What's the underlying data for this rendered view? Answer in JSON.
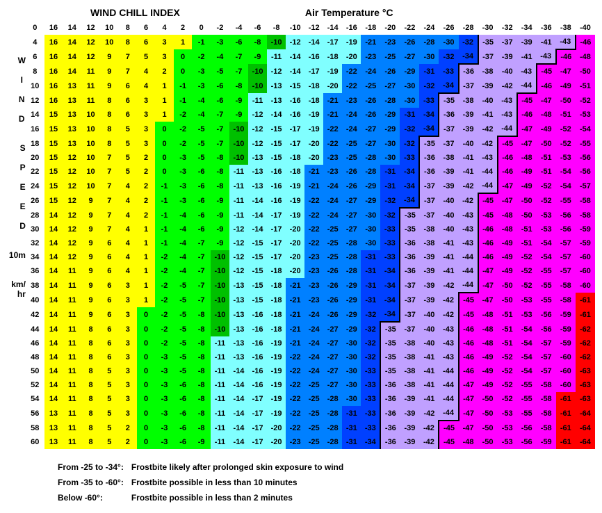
{
  "title": "WIND CHILL INDEX",
  "subtitle": "Air Temperature °C",
  "side_label_word1": "WIND",
  "side_label_word2": "SPEED",
  "side_label_10m": "10m",
  "side_label_unit1": "km/",
  "side_label_unit2": "hr",
  "temps": [
    16,
    14,
    12,
    10,
    8,
    6,
    4,
    2,
    0,
    -2,
    -4,
    -6,
    -8,
    -10,
    -12,
    -14,
    -16,
    -18,
    -20,
    -22,
    -24,
    -26,
    -28,
    -30,
    -32,
    -34,
    -36,
    -38,
    -40
  ],
  "winds": [
    4,
    6,
    8,
    10,
    12,
    14,
    16,
    18,
    20,
    22,
    24,
    26,
    28,
    30,
    32,
    34,
    36,
    38,
    40,
    42,
    44,
    46,
    48,
    50,
    52,
    54,
    56,
    58,
    60
  ],
  "zero_header": "0",
  "values": [
    [
      16,
      14,
      12,
      10,
      8,
      6,
      3,
      1,
      -1,
      -3,
      -6,
      -8,
      -10,
      -12,
      -14,
      -17,
      -19,
      -21,
      -23,
      -26,
      -28,
      -30,
      -32,
      -35,
      -37,
      -39,
      -41,
      -43,
      -46
    ],
    [
      16,
      14,
      12,
      9,
      7,
      5,
      3,
      0,
      -2,
      -4,
      -7,
      -9,
      -11,
      -14,
      -16,
      -18,
      -20,
      -23,
      -25,
      -27,
      -30,
      -32,
      -34,
      -37,
      -39,
      -41,
      -43,
      -46,
      -48
    ],
    [
      16,
      14,
      11,
      9,
      7,
      4,
      2,
      0,
      -3,
      -5,
      -7,
      -10,
      -12,
      -14,
      -17,
      -19,
      -22,
      -24,
      -26,
      -29,
      -31,
      -33,
      -36,
      -38,
      -40,
      -43,
      -45,
      -47,
      -50
    ],
    [
      16,
      13,
      11,
      9,
      6,
      4,
      1,
      -1,
      -3,
      -6,
      -8,
      -10,
      -13,
      -15,
      -18,
      -20,
      -22,
      -25,
      -27,
      -30,
      -32,
      -34,
      -37,
      -39,
      -42,
      -44,
      -46,
      -49,
      -51
    ],
    [
      16,
      13,
      11,
      8,
      6,
      3,
      1,
      -1,
      -4,
      -6,
      -9,
      -11,
      -13,
      -16,
      -18,
      -21,
      -23,
      -26,
      -28,
      -30,
      -33,
      -35,
      -38,
      -40,
      -43,
      -45,
      -47,
      -50,
      -52
    ],
    [
      15,
      13,
      10,
      8,
      6,
      3,
      1,
      -2,
      -4,
      -7,
      -9,
      -12,
      -14,
      -16,
      -19,
      -21,
      -24,
      -26,
      -29,
      -31,
      -34,
      -36,
      -39,
      -41,
      -43,
      -46,
      -48,
      -51,
      -53
    ],
    [
      15,
      13,
      10,
      8,
      5,
      3,
      0,
      -2,
      -5,
      -7,
      -10,
      -12,
      -15,
      -17,
      -19,
      -22,
      -24,
      -27,
      -29,
      -32,
      -34,
      -37,
      -39,
      -42,
      -44,
      -47,
      -49,
      -52,
      -54
    ],
    [
      15,
      13,
      10,
      8,
      5,
      3,
      0,
      -2,
      -5,
      -7,
      -10,
      -12,
      -15,
      -17,
      -20,
      -22,
      -25,
      -27,
      -30,
      -32,
      -35,
      -37,
      -40,
      -42,
      -45,
      -47,
      -50,
      -52,
      -55
    ],
    [
      15,
      12,
      10,
      7,
      5,
      2,
      0,
      -3,
      -5,
      -8,
      -10,
      -13,
      -15,
      -18,
      -20,
      -23,
      -25,
      -28,
      -30,
      -33,
      -36,
      -38,
      -41,
      -43,
      -46,
      -48,
      -51,
      -53,
      -56
    ],
    [
      15,
      12,
      10,
      7,
      5,
      2,
      0,
      -3,
      -6,
      -8,
      -11,
      -13,
      -16,
      -18,
      -21,
      -23,
      -26,
      -28,
      -31,
      -34,
      -36,
      -39,
      -41,
      -44,
      -46,
      -49,
      -51,
      -54,
      -56
    ],
    [
      15,
      12,
      10,
      7,
      4,
      2,
      -1,
      -3,
      -6,
      -8,
      -11,
      -13,
      -16,
      -19,
      -21,
      -24,
      -26,
      -29,
      -31,
      -34,
      -37,
      -39,
      -42,
      -44,
      -47,
      -49,
      -52,
      -54,
      -57
    ],
    [
      15,
      12,
      9,
      7,
      4,
      2,
      -1,
      -3,
      -6,
      -9,
      -11,
      -14,
      -16,
      -19,
      -22,
      -24,
      -27,
      -29,
      -32,
      -34,
      -37,
      -40,
      -42,
      -45,
      -47,
      -50,
      -52,
      -55,
      -58
    ],
    [
      14,
      12,
      9,
      7,
      4,
      2,
      -1,
      -4,
      -6,
      -9,
      -11,
      -14,
      -17,
      -19,
      -22,
      -24,
      -27,
      -30,
      -32,
      -35,
      -37,
      -40,
      -43,
      -45,
      -48,
      -50,
      -53,
      -56,
      -58
    ],
    [
      14,
      12,
      9,
      7,
      4,
      1,
      -1,
      -4,
      -6,
      -9,
      -12,
      -14,
      -17,
      -20,
      -22,
      -25,
      -27,
      -30,
      -33,
      -35,
      -38,
      -40,
      -43,
      -46,
      -48,
      -51,
      -53,
      -56,
      -59
    ],
    [
      14,
      12,
      9,
      6,
      4,
      1,
      -1,
      -4,
      -7,
      -9,
      -12,
      -15,
      -17,
      -20,
      -22,
      -25,
      -28,
      -30,
      -33,
      -36,
      -38,
      -41,
      -43,
      -46,
      -49,
      -51,
      -54,
      -57,
      -59
    ],
    [
      14,
      12,
      9,
      6,
      4,
      1,
      -2,
      -4,
      -7,
      -10,
      -12,
      -15,
      -17,
      -20,
      -23,
      -25,
      -28,
      -31,
      -33,
      -36,
      -39,
      -41,
      -44,
      -46,
      -49,
      -52,
      -54,
      -57,
      -60
    ],
    [
      14,
      11,
      9,
      6,
      4,
      1,
      -2,
      -4,
      -7,
      -10,
      -12,
      -15,
      -18,
      -20,
      -23,
      -26,
      -28,
      -31,
      -34,
      -36,
      -39,
      -41,
      -44,
      -47,
      -49,
      -52,
      -55,
      -57,
      -60
    ],
    [
      14,
      11,
      9,
      6,
      3,
      1,
      -2,
      -5,
      -7,
      -10,
      -13,
      -15,
      -18,
      -21,
      -23,
      -26,
      -29,
      -31,
      -34,
      -37,
      -39,
      -42,
      -44,
      -47,
      -50,
      -52,
      -55,
      -58,
      -60
    ],
    [
      14,
      11,
      9,
      6,
      3,
      1,
      -2,
      -5,
      -7,
      -10,
      -13,
      -15,
      -18,
      -21,
      -23,
      -26,
      -29,
      -31,
      -34,
      -37,
      -39,
      -42,
      -45,
      -47,
      -50,
      -53,
      -55,
      -58,
      -61
    ],
    [
      14,
      11,
      9,
      6,
      3,
      0,
      -2,
      -5,
      -8,
      -10,
      -13,
      -16,
      -18,
      -21,
      -24,
      -26,
      -29,
      -32,
      -34,
      -37,
      -40,
      -42,
      -45,
      -48,
      -51,
      -53,
      -56,
      -59,
      -61
    ],
    [
      14,
      11,
      8,
      6,
      3,
      0,
      -2,
      -5,
      -8,
      -10,
      -13,
      -16,
      -18,
      -21,
      -24,
      -27,
      -29,
      -32,
      -35,
      -37,
      -40,
      -43,
      -46,
      -48,
      -51,
      -54,
      -56,
      -59,
      -62
    ],
    [
      14,
      11,
      8,
      6,
      3,
      0,
      -2,
      -5,
      -8,
      -11,
      -13,
      -16,
      -19,
      -21,
      -24,
      -27,
      -30,
      -32,
      -35,
      -38,
      -40,
      -43,
      -46,
      -48,
      -51,
      -54,
      -57,
      -59,
      -62
    ],
    [
      14,
      11,
      8,
      6,
      3,
      0,
      -3,
      -5,
      -8,
      -11,
      -13,
      -16,
      -19,
      -22,
      -24,
      -27,
      -30,
      -32,
      -35,
      -38,
      -41,
      -43,
      -46,
      -49,
      -52,
      -54,
      -57,
      -60,
      -62
    ],
    [
      14,
      11,
      8,
      5,
      3,
      0,
      -3,
      -5,
      -8,
      -11,
      -14,
      -16,
      -19,
      -22,
      -24,
      -27,
      -30,
      -33,
      -35,
      -38,
      -41,
      -44,
      -46,
      -49,
      -52,
      -54,
      -57,
      -60,
      -63
    ],
    [
      14,
      11,
      8,
      5,
      3,
      0,
      -3,
      -6,
      -8,
      -11,
      -14,
      -16,
      -19,
      -22,
      -25,
      -27,
      -30,
      -33,
      -36,
      -38,
      -41,
      -44,
      -47,
      -49,
      -52,
      -55,
      -58,
      -60,
      -63
    ],
    [
      14,
      11,
      8,
      5,
      3,
      0,
      -3,
      -6,
      -8,
      -11,
      -14,
      -17,
      -19,
      -22,
      -25,
      -28,
      -30,
      -33,
      -36,
      -39,
      -41,
      -44,
      -47,
      -50,
      -52,
      -55,
      -58,
      -61,
      -63
    ],
    [
      13,
      11,
      8,
      5,
      3,
      0,
      -3,
      -6,
      -8,
      -11,
      -14,
      -17,
      -19,
      -22,
      -25,
      -28,
      -31,
      -33,
      -36,
      -39,
      -42,
      -44,
      -47,
      -50,
      -53,
      -55,
      -58,
      -61,
      -64
    ],
    [
      13,
      11,
      8,
      5,
      2,
      0,
      -3,
      -6,
      -8,
      -11,
      -14,
      -17,
      -20,
      -22,
      -25,
      -28,
      -31,
      -33,
      -36,
      -39,
      -42,
      -45,
      -47,
      -50,
      -53,
      -56,
      -58,
      -61,
      -64
    ],
    [
      13,
      11,
      8,
      5,
      2,
      0,
      -3,
      -6,
      -9,
      -11,
      -14,
      -17,
      -20,
      -23,
      -25,
      -28,
      -31,
      -34,
      -36,
      -39,
      -42,
      -45,
      -48,
      -50,
      -53,
      -56,
      -59,
      -61,
      -64
    ]
  ],
  "colors": {
    "yellow": "#ffff00",
    "green1": "#00ff00",
    "green2": "#00c000",
    "cyan": "#80ffff",
    "blue1": "#0080ff",
    "blue2": "#0040ff",
    "violet": "#c0a0ff",
    "magenta": "#ff00ff",
    "red": "#ff0000",
    "white": "#ffffff",
    "border": "#000000"
  },
  "font": {
    "family": "Arial, Helvetica, sans-serif",
    "cell_size": 11,
    "title_size": 14
  },
  "cell": {
    "w": 28,
    "h": 20
  },
  "notes": [
    [
      "From -25 to -34°:",
      "Frostbite likely after prolonged skin exposure to wind"
    ],
    [
      "From -35 to -60°:",
      "Frostbite possible in less than 10 minutes"
    ],
    [
      "Below -60°:",
      "Frostbite possible in less than 2 minutes"
    ]
  ]
}
